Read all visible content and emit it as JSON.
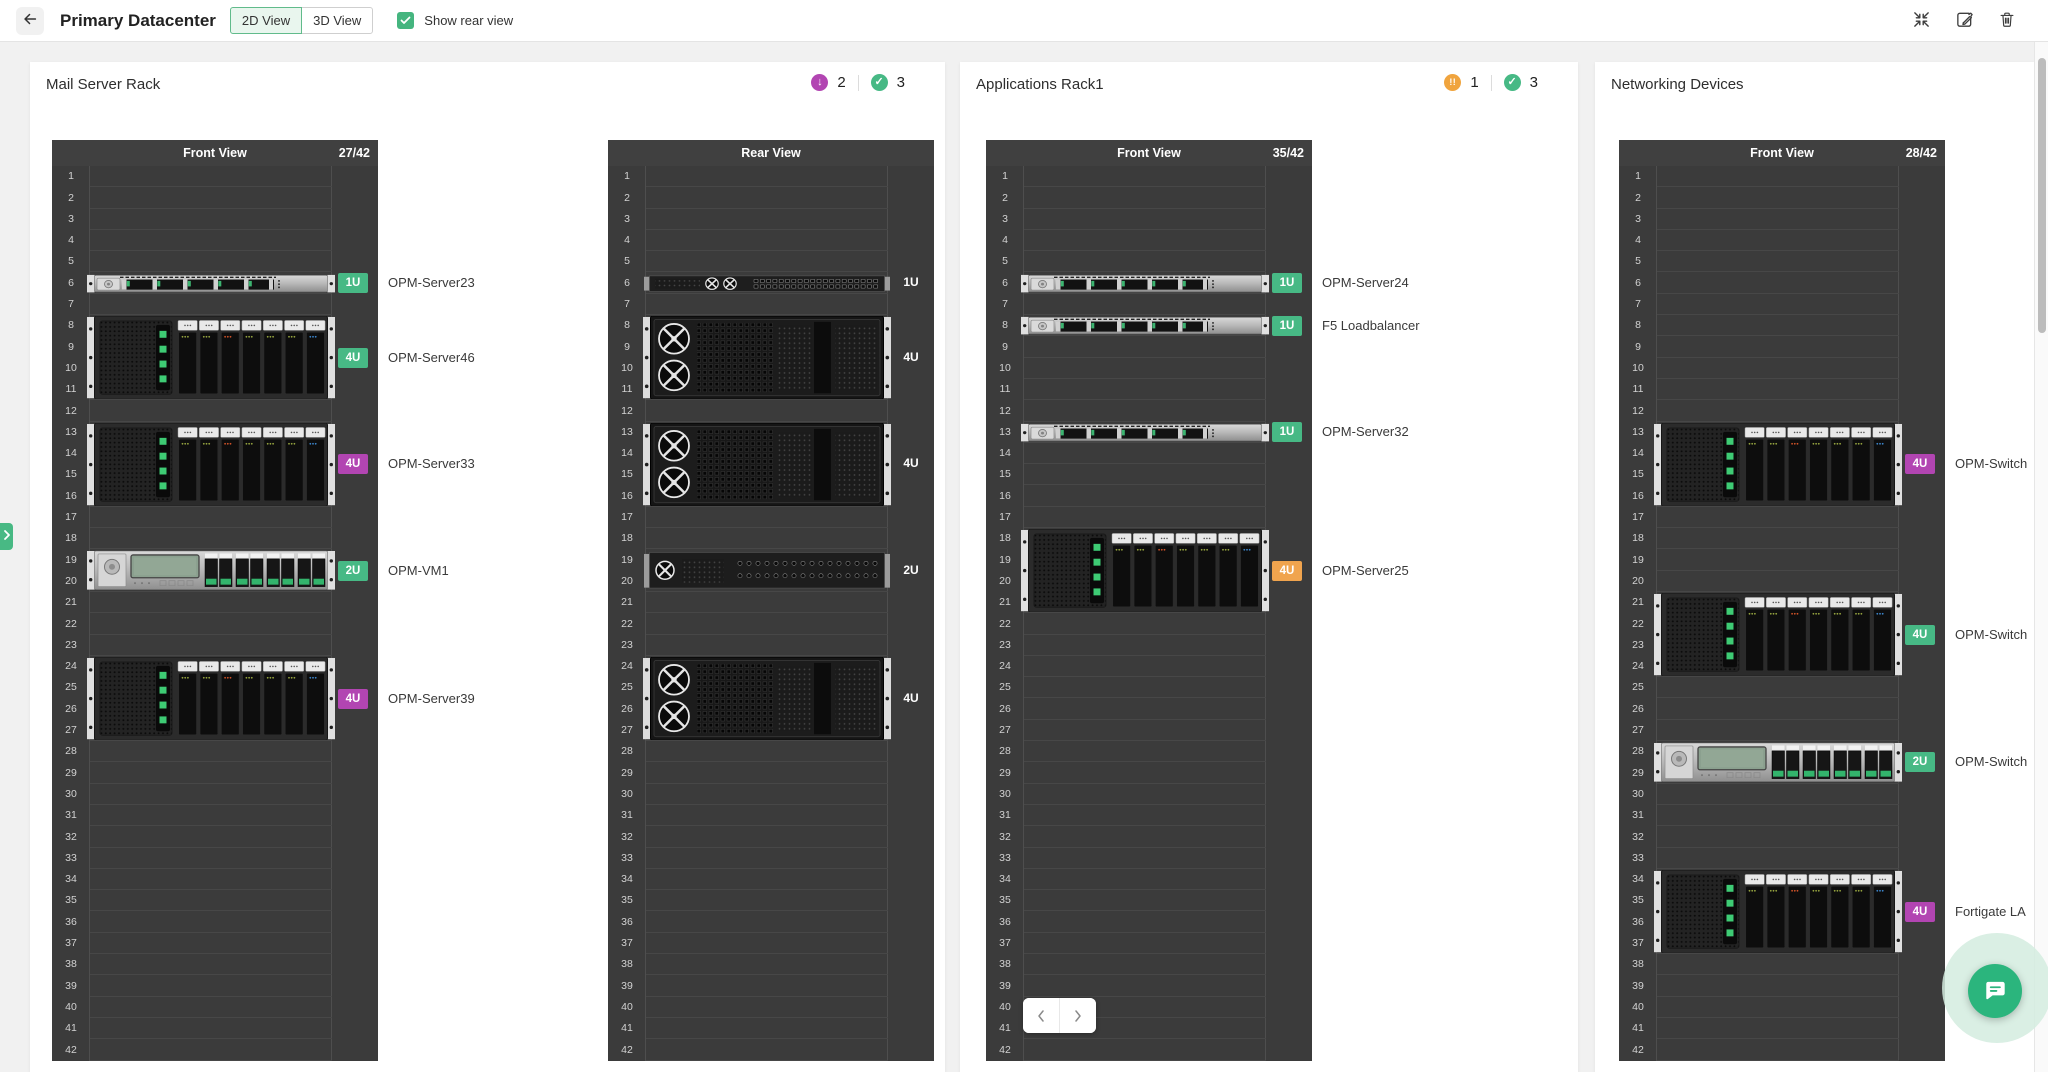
{
  "topbar": {
    "back_icon": "left-arrow",
    "title": "Primary Datacenter",
    "views": [
      {
        "label": "2D View",
        "active": true
      },
      {
        "label": "3D View",
        "active": false
      }
    ],
    "show_rear_view": {
      "label": "Show rear view",
      "checked": true
    },
    "actions": [
      {
        "name": "collapse",
        "icon": "collapse-arrows-icon"
      },
      {
        "name": "edit",
        "icon": "edit-pencil-icon"
      },
      {
        "name": "delete",
        "icon": "trash-icon"
      }
    ]
  },
  "colors": {
    "green": "#47b985",
    "purple": "#b245b2",
    "orange": "#f0a44e",
    "status_ok": "#47b985",
    "status_down": "#b245b2",
    "status_warn": "#f0a43e",
    "rack_header": "#404040",
    "rack_body": "#3b3b3b"
  },
  "pagination": {
    "prev_icon": "chevron-left",
    "next_icon": "chevron-right"
  },
  "chat": {
    "icon": "chat-bubble-icon"
  },
  "left_drawer_toggle": {
    "icon": "chevron-right-icon"
  },
  "panels": [
    {
      "title": "Mail Server Rack",
      "status_badges": [
        {
          "icon": "down",
          "color": "#b245b2",
          "count": "2"
        },
        {
          "icon": "ok",
          "color": "#47b985",
          "count": "3"
        }
      ],
      "pagination": false,
      "racks": [
        {
          "view": "Front View",
          "usage": "27/42",
          "units": 42,
          "label_style": "badge",
          "devices": [
            {
              "name": "OPM-Server23",
              "unit": 6,
              "size": 1,
              "size_label": "1U",
              "color": "green",
              "style": "front-1u"
            },
            {
              "name": "OPM-Server46",
              "unit": 8,
              "size": 4,
              "size_label": "4U",
              "color": "green",
              "style": "front-4u"
            },
            {
              "name": "OPM-Server33",
              "unit": 13,
              "size": 4,
              "size_label": "4U",
              "color": "purple",
              "style": "front-4u"
            },
            {
              "name": "OPM-VM1",
              "unit": 19,
              "size": 2,
              "size_label": "2U",
              "color": "green",
              "style": "front-2u"
            },
            {
              "name": "OPM-Server39",
              "unit": 24,
              "size": 4,
              "size_label": "4U",
              "color": "purple",
              "style": "front-4u"
            }
          ]
        },
        {
          "view": "Rear View",
          "usage": "",
          "units": 42,
          "label_style": "plain",
          "devices": [
            {
              "name": "",
              "unit": 6,
              "size": 1,
              "size_label": "1U",
              "color": "",
              "style": "rear-1u"
            },
            {
              "name": "",
              "unit": 8,
              "size": 4,
              "size_label": "4U",
              "color": "",
              "style": "rear-4u"
            },
            {
              "name": "",
              "unit": 13,
              "size": 4,
              "size_label": "4U",
              "color": "",
              "style": "rear-4u"
            },
            {
              "name": "",
              "unit": 19,
              "size": 2,
              "size_label": "2U",
              "color": "",
              "style": "rear-2u"
            },
            {
              "name": "",
              "unit": 24,
              "size": 4,
              "size_label": "4U",
              "color": "",
              "style": "rear-4u"
            }
          ]
        }
      ]
    },
    {
      "title": "Applications Rack1",
      "status_badges": [
        {
          "icon": "warn",
          "color": "#f0a43e",
          "count": "1"
        },
        {
          "icon": "ok",
          "color": "#47b985",
          "count": "3"
        }
      ],
      "pagination": true,
      "racks": [
        {
          "view": "Front View",
          "usage": "35/42",
          "units": 42,
          "label_style": "badge",
          "devices": [
            {
              "name": "OPM-Server24",
              "unit": 6,
              "size": 1,
              "size_label": "1U",
              "color": "green",
              "style": "front-1u"
            },
            {
              "name": "F5 Loadbalancer",
              "unit": 8,
              "size": 1,
              "size_label": "1U",
              "color": "green",
              "style": "front-1u"
            },
            {
              "name": "OPM-Server32",
              "unit": 13,
              "size": 1,
              "size_label": "1U",
              "color": "green",
              "style": "front-1u"
            },
            {
              "name": "OPM-Server25",
              "unit": 18,
              "size": 4,
              "size_label": "4U",
              "color": "orange",
              "style": "front-4u"
            }
          ]
        }
      ]
    },
    {
      "title": "Networking Devices",
      "status_badges": [],
      "pagination": false,
      "racks": [
        {
          "view": "Front View",
          "usage": "28/42",
          "units": 42,
          "label_style": "badge",
          "devices": [
            {
              "name": "OPM-Switch",
              "unit": 13,
              "size": 4,
              "size_label": "4U",
              "color": "purple",
              "style": "front-4u"
            },
            {
              "name": "OPM-Switch",
              "unit": 21,
              "size": 4,
              "size_label": "4U",
              "color": "green",
              "style": "front-4u"
            },
            {
              "name": "OPM-Switch",
              "unit": 28,
              "size": 2,
              "size_label": "2U",
              "color": "green",
              "style": "front-2u"
            },
            {
              "name": "Fortigate LA",
              "unit": 34,
              "size": 4,
              "size_label": "4U",
              "color": "purple",
              "style": "front-4u"
            }
          ]
        }
      ]
    }
  ]
}
